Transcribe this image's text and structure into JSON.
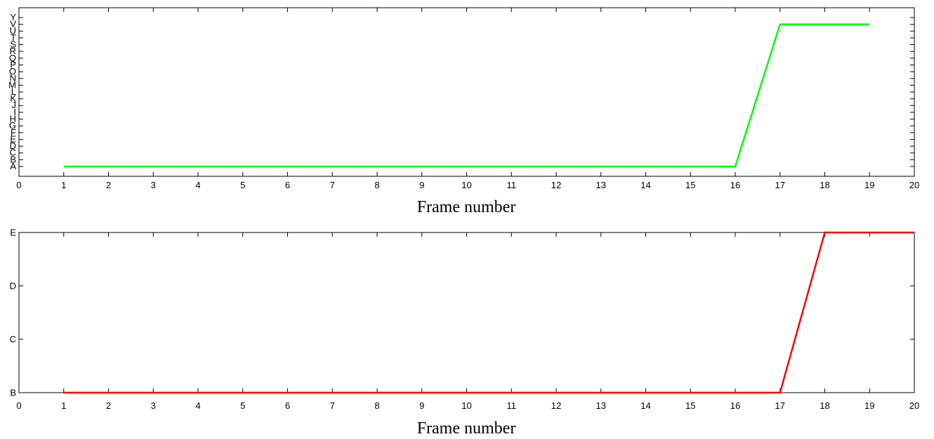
{
  "chart_data": [
    {
      "type": "line",
      "xlabel": "Frame number",
      "ylabel": "",
      "xlim": [
        0,
        20
      ],
      "x_ticks": [
        0,
        1,
        2,
        3,
        4,
        5,
        6,
        7,
        8,
        9,
        10,
        11,
        12,
        13,
        14,
        15,
        16,
        17,
        18,
        19,
        20
      ],
      "y_categories": [
        "A",
        "B",
        "C",
        "D",
        "E",
        "F",
        "G",
        "H",
        "I",
        "J",
        "K",
        "L",
        "M",
        "N",
        "O",
        "P",
        "Q",
        "R",
        "S",
        "T",
        "U",
        "V",
        "Y"
      ],
      "grid": false,
      "series": [
        {
          "color": "#00ff00",
          "x": [
            1,
            16,
            17,
            19
          ],
          "y": [
            "A",
            "A",
            "V",
            "V"
          ]
        }
      ]
    },
    {
      "type": "line",
      "xlabel": "Frame number",
      "ylabel": "",
      "xlim": [
        0,
        20
      ],
      "x_ticks": [
        0,
        1,
        2,
        3,
        4,
        5,
        6,
        7,
        8,
        9,
        10,
        11,
        12,
        13,
        14,
        15,
        16,
        17,
        18,
        19,
        20
      ],
      "y_categories": [
        "B",
        "C",
        "D",
        "E"
      ],
      "grid": false,
      "series": [
        {
          "color": "#ff0000",
          "x": [
            1,
            17,
            18,
            20
          ],
          "y": [
            "B",
            "B",
            "E",
            "E"
          ]
        }
      ]
    }
  ]
}
